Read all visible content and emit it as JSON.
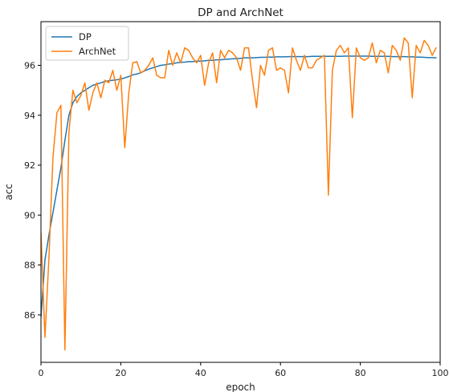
{
  "chart_data": {
    "type": "line",
    "title": "DP and ArchNet",
    "xlabel": "epoch",
    "ylabel": "acc",
    "xlim": [
      0,
      100
    ],
    "ylim": [
      84.1,
      97.75
    ],
    "xticks": [
      0,
      20,
      40,
      60,
      80,
      100
    ],
    "yticks": [
      86,
      88,
      90,
      92,
      94,
      96
    ],
    "legend_position": "top-left",
    "grid": false,
    "series": [
      {
        "name": "DP",
        "color": "#1f77b4",
        "x": [
          0,
          1,
          2,
          3,
          4,
          5,
          6,
          7,
          8,
          9,
          10,
          11,
          12,
          13,
          14,
          15,
          16,
          17,
          18,
          19,
          20,
          21,
          22,
          23,
          24,
          25,
          26,
          27,
          28,
          29,
          30,
          31,
          32,
          33,
          34,
          35,
          36,
          37,
          38,
          39,
          40,
          41,
          42,
          43,
          44,
          45,
          46,
          47,
          48,
          49,
          50,
          51,
          52,
          53,
          54,
          55,
          56,
          57,
          58,
          59,
          60,
          61,
          62,
          63,
          64,
          65,
          66,
          67,
          68,
          69,
          70,
          71,
          72,
          73,
          74,
          75,
          76,
          77,
          78,
          79,
          80,
          81,
          82,
          83,
          84,
          85,
          86,
          87,
          88,
          89,
          90,
          91,
          92,
          93,
          94,
          95,
          96,
          97,
          98,
          99
        ],
        "values": [
          85.9,
          88.2,
          89.2,
          90.1,
          91.0,
          91.9,
          93.0,
          94.0,
          94.5,
          94.75,
          94.9,
          95.0,
          95.1,
          95.2,
          95.25,
          95.3,
          95.35,
          95.38,
          95.4,
          95.42,
          95.45,
          95.5,
          95.55,
          95.62,
          95.65,
          95.7,
          95.78,
          95.85,
          95.9,
          95.95,
          96.0,
          96.02,
          96.05,
          96.07,
          96.1,
          96.12,
          96.13,
          96.15,
          96.15,
          96.17,
          96.17,
          96.18,
          96.2,
          96.2,
          96.22,
          96.22,
          96.24,
          96.25,
          96.26,
          96.27,
          96.28,
          96.3,
          96.3,
          96.3,
          96.31,
          96.32,
          96.32,
          96.33,
          96.33,
          96.34,
          96.34,
          96.34,
          96.35,
          96.35,
          96.35,
          96.35,
          96.35,
          96.35,
          96.36,
          96.36,
          96.36,
          96.36,
          96.36,
          96.36,
          96.36,
          96.36,
          96.37,
          96.37,
          96.37,
          96.37,
          96.37,
          96.37,
          96.37,
          96.36,
          96.36,
          96.36,
          96.36,
          96.36,
          96.35,
          96.35,
          96.35,
          96.35,
          96.34,
          96.34,
          96.33,
          96.33,
          96.32,
          96.31,
          96.31,
          96.3
        ]
      },
      {
        "name": "ArchNet",
        "color": "#ff7f0e",
        "x": [
          0,
          1,
          2,
          3,
          4,
          5,
          6,
          7,
          8,
          9,
          10,
          11,
          12,
          13,
          14,
          15,
          16,
          17,
          18,
          19,
          20,
          21,
          22,
          23,
          24,
          25,
          26,
          27,
          28,
          29,
          30,
          31,
          32,
          33,
          34,
          35,
          36,
          37,
          38,
          39,
          40,
          41,
          42,
          43,
          44,
          45,
          46,
          47,
          48,
          49,
          50,
          51,
          52,
          53,
          54,
          55,
          56,
          57,
          58,
          59,
          60,
          61,
          62,
          63,
          64,
          65,
          66,
          67,
          68,
          69,
          70,
          71,
          72,
          73,
          74,
          75,
          76,
          77,
          78,
          79,
          80,
          81,
          82,
          83,
          84,
          85,
          86,
          87,
          88,
          89,
          90,
          91,
          92,
          93,
          94,
          95,
          96,
          97,
          98,
          99
        ],
        "values": [
          89.3,
          85.1,
          88.3,
          92.3,
          94.1,
          94.4,
          84.6,
          93.3,
          95.0,
          94.5,
          94.8,
          95.3,
          94.2,
          94.9,
          95.3,
          94.7,
          95.4,
          95.3,
          95.8,
          95.0,
          95.6,
          92.7,
          94.9,
          96.1,
          96.15,
          95.7,
          95.8,
          96.0,
          96.3,
          95.6,
          95.5,
          95.5,
          96.6,
          96.0,
          96.5,
          96.1,
          96.7,
          96.6,
          96.3,
          96.1,
          96.4,
          95.2,
          96.1,
          96.5,
          95.3,
          96.6,
          96.3,
          96.6,
          96.5,
          96.3,
          95.8,
          96.7,
          96.7,
          95.4,
          94.3,
          96.0,
          95.6,
          96.6,
          96.7,
          95.8,
          95.9,
          95.8,
          94.9,
          96.7,
          96.2,
          95.8,
          96.4,
          95.9,
          95.9,
          96.2,
          96.3,
          96.4,
          90.8,
          95.8,
          96.6,
          96.8,
          96.5,
          96.7,
          93.9,
          96.7,
          96.3,
          96.2,
          96.3,
          96.9,
          96.1,
          96.6,
          96.5,
          95.7,
          96.8,
          96.6,
          96.2,
          97.1,
          96.9,
          94.7,
          96.8,
          96.5,
          97.0,
          96.8,
          96.4,
          96.7
        ]
      }
    ]
  }
}
